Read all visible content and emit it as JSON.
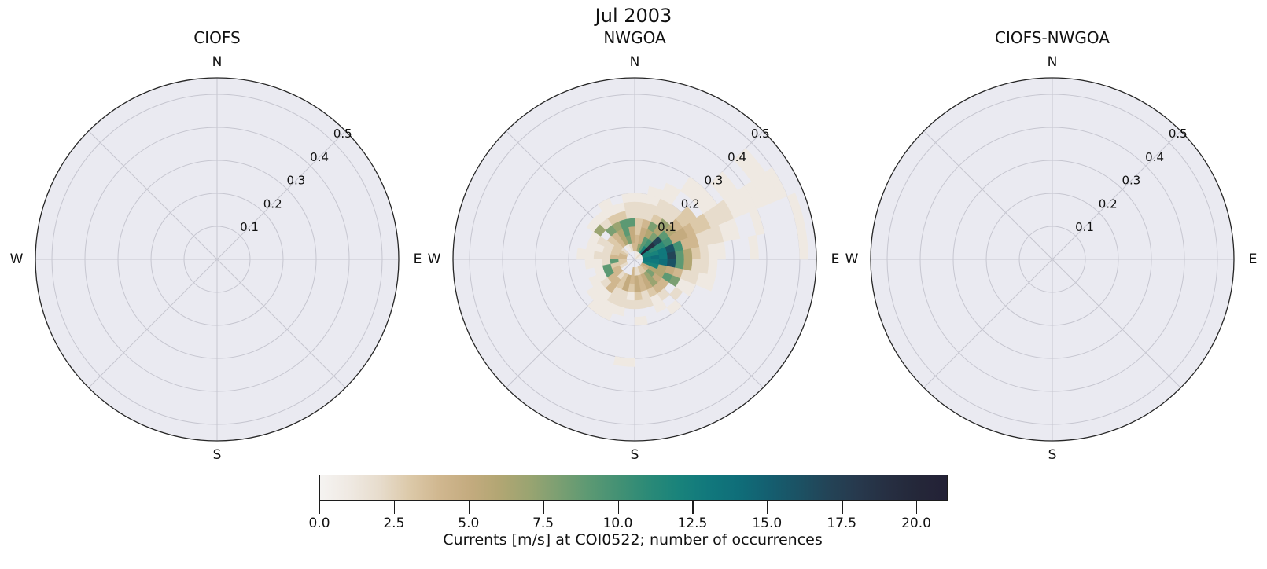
{
  "main_title": "Jul 2003",
  "colors": {
    "figure_bg": "#ffffff",
    "axes_bg": "#eaeaf1",
    "grid": "#c6c6d0",
    "spine": "#262626",
    "text": "#111111"
  },
  "chart_data": {
    "type": "heatmap",
    "subtype": "polar-pcolormesh-rose, 3 panels sharing one colorbar",
    "title": "Jul 2003",
    "panels": [
      {
        "title": "CIOFS",
        "has_data": false
      },
      {
        "title": "NWGOA",
        "has_data": true
      },
      {
        "title": "CIOFS-NWGOA",
        "has_data": false
      }
    ],
    "compass_labels": {
      "top": "N",
      "right": "E",
      "bottom": "S",
      "left": "W"
    },
    "r_ticks": [
      0.1,
      0.2,
      0.3,
      0.4,
      0.5
    ],
    "r_tick_labels": [
      "0.1",
      "0.2",
      "0.3",
      "0.4",
      "0.5"
    ],
    "r_tick_label_angle_deg": 45,
    "r_max": 0.55,
    "grid": true,
    "angle_bin_deg": 11.25,
    "r_bin_width": 0.025,
    "cells_format": "[sector_index (0 = 0-11.25 deg CCW from East), radial_bin_index (0 = 0-0.025 m/s), count]",
    "cells": [
      [
        0,
        0,
        1
      ],
      [
        0,
        1,
        13
      ],
      [
        0,
        2,
        14
      ],
      [
        0,
        3,
        13
      ],
      [
        0,
        4,
        17
      ],
      [
        0,
        5,
        9
      ],
      [
        0,
        6,
        6
      ],
      [
        0,
        7,
        3
      ],
      [
        0,
        8,
        2
      ],
      [
        0,
        9,
        1
      ],
      [
        0,
        10,
        1
      ],
      [
        0,
        14,
        1
      ],
      [
        0,
        20,
        1
      ],
      [
        1,
        0,
        1
      ],
      [
        1,
        1,
        12
      ],
      [
        1,
        2,
        12
      ],
      [
        1,
        3,
        13
      ],
      [
        1,
        4,
        16
      ],
      [
        1,
        5,
        10
      ],
      [
        1,
        6,
        4
      ],
      [
        1,
        7,
        4
      ],
      [
        1,
        8,
        2
      ],
      [
        1,
        9,
        2
      ],
      [
        1,
        10,
        2
      ],
      [
        1,
        11,
        1
      ],
      [
        1,
        12,
        1
      ],
      [
        1,
        15,
        1
      ],
      [
        1,
        20,
        1
      ],
      [
        2,
        0,
        1
      ],
      [
        2,
        1,
        12
      ],
      [
        2,
        2,
        11
      ],
      [
        2,
        3,
        11
      ],
      [
        2,
        4,
        10
      ],
      [
        2,
        5,
        5
      ],
      [
        2,
        6,
        5
      ],
      [
        2,
        7,
        4
      ],
      [
        2,
        8,
        3
      ],
      [
        2,
        9,
        3
      ],
      [
        2,
        10,
        2
      ],
      [
        2,
        11,
        2
      ],
      [
        2,
        12,
        2
      ],
      [
        2,
        13,
        1
      ],
      [
        2,
        14,
        1
      ],
      [
        2,
        15,
        1
      ],
      [
        2,
        16,
        1
      ],
      [
        2,
        17,
        1
      ],
      [
        2,
        18,
        1
      ],
      [
        2,
        19,
        1
      ],
      [
        3,
        0,
        2
      ],
      [
        3,
        1,
        21
      ],
      [
        3,
        2,
        19
      ],
      [
        3,
        3,
        17
      ],
      [
        3,
        4,
        9
      ],
      [
        3,
        5,
        6
      ],
      [
        3,
        6,
        4
      ],
      [
        3,
        7,
        3
      ],
      [
        3,
        8,
        3
      ],
      [
        3,
        10,
        1
      ],
      [
        3,
        11,
        1
      ],
      [
        3,
        13,
        1
      ],
      [
        3,
        14,
        1
      ],
      [
        3,
        17,
        1
      ],
      [
        3,
        18,
        1
      ],
      [
        4,
        0,
        2
      ],
      [
        4,
        1,
        12
      ],
      [
        4,
        2,
        10
      ],
      [
        4,
        3,
        8
      ],
      [
        4,
        4,
        6
      ],
      [
        4,
        5,
        7
      ],
      [
        4,
        6,
        2
      ],
      [
        4,
        7,
        2
      ],
      [
        4,
        10,
        1
      ],
      [
        4,
        11,
        1
      ],
      [
        5,
        0,
        1
      ],
      [
        5,
        1,
        9
      ],
      [
        5,
        2,
        9
      ],
      [
        5,
        3,
        6
      ],
      [
        5,
        4,
        8
      ],
      [
        5,
        5,
        3
      ],
      [
        5,
        6,
        2
      ],
      [
        5,
        7,
        2
      ],
      [
        5,
        8,
        1
      ],
      [
        5,
        9,
        1
      ],
      [
        6,
        0,
        1
      ],
      [
        6,
        1,
        7
      ],
      [
        6,
        2,
        5
      ],
      [
        6,
        3,
        5
      ],
      [
        6,
        4,
        4
      ],
      [
        6,
        5,
        2
      ],
      [
        6,
        6,
        2
      ],
      [
        6,
        7,
        1
      ],
      [
        6,
        8,
        1
      ],
      [
        7,
        0,
        1
      ],
      [
        7,
        1,
        4
      ],
      [
        7,
        2,
        4
      ],
      [
        7,
        3,
        3
      ],
      [
        7,
        4,
        3
      ],
      [
        7,
        5,
        2
      ],
      [
        7,
        6,
        2
      ],
      [
        7,
        7,
        1
      ],
      [
        8,
        1,
        4
      ],
      [
        8,
        2,
        5
      ],
      [
        8,
        3,
        5
      ],
      [
        8,
        4,
        9
      ],
      [
        8,
        5,
        2
      ],
      [
        8,
        6,
        2
      ],
      [
        8,
        7,
        1
      ],
      [
        9,
        1,
        2
      ],
      [
        9,
        2,
        8
      ],
      [
        9,
        3,
        9
      ],
      [
        9,
        4,
        9
      ],
      [
        9,
        5,
        3
      ],
      [
        9,
        6,
        1
      ],
      [
        10,
        1,
        1
      ],
      [
        10,
        2,
        6
      ],
      [
        10,
        3,
        6
      ],
      [
        10,
        4,
        7
      ],
      [
        10,
        5,
        3
      ],
      [
        10,
        6,
        1
      ],
      [
        10,
        7,
        1
      ],
      [
        11,
        2,
        4
      ],
      [
        11,
        3,
        4
      ],
      [
        11,
        4,
        8
      ],
      [
        11,
        5,
        2
      ],
      [
        11,
        6,
        1
      ],
      [
        12,
        1,
        2
      ],
      [
        12,
        2,
        3
      ],
      [
        12,
        3,
        3
      ],
      [
        12,
        5,
        7
      ],
      [
        12,
        6,
        1
      ],
      [
        13,
        1,
        3
      ],
      [
        13,
        2,
        3
      ],
      [
        13,
        3,
        2
      ],
      [
        13,
        4,
        2
      ],
      [
        13,
        5,
        1
      ],
      [
        14,
        1,
        4
      ],
      [
        14,
        2,
        3
      ],
      [
        14,
        3,
        2
      ],
      [
        14,
        4,
        1
      ],
      [
        14,
        5,
        1
      ],
      [
        15,
        1,
        4
      ],
      [
        15,
        2,
        4
      ],
      [
        15,
        3,
        2
      ],
      [
        15,
        4,
        2
      ],
      [
        15,
        5,
        1
      ],
      [
        15,
        6,
        1
      ],
      [
        16,
        1,
        3
      ],
      [
        16,
        2,
        9
      ],
      [
        16,
        3,
        2
      ],
      [
        16,
        4,
        1
      ],
      [
        16,
        5,
        1
      ],
      [
        17,
        1,
        3
      ],
      [
        17,
        2,
        3
      ],
      [
        17,
        3,
        9
      ],
      [
        17,
        4,
        1
      ],
      [
        18,
        1,
        2
      ],
      [
        18,
        2,
        4
      ],
      [
        18,
        3,
        9
      ],
      [
        18,
        4,
        1
      ],
      [
        18,
        5,
        1
      ],
      [
        19,
        2,
        4
      ],
      [
        19,
        3,
        4
      ],
      [
        19,
        4,
        2
      ],
      [
        19,
        5,
        1
      ],
      [
        19,
        6,
        1
      ],
      [
        20,
        2,
        2
      ],
      [
        20,
        3,
        4
      ],
      [
        20,
        4,
        4
      ],
      [
        20,
        5,
        1
      ],
      [
        20,
        6,
        1
      ],
      [
        20,
        7,
        1
      ],
      [
        21,
        2,
        3
      ],
      [
        21,
        3,
        3
      ],
      [
        21,
        4,
        2
      ],
      [
        21,
        5,
        2
      ],
      [
        21,
        6,
        1
      ],
      [
        21,
        7,
        1
      ],
      [
        22,
        2,
        5
      ],
      [
        22,
        3,
        5
      ],
      [
        22,
        4,
        2
      ],
      [
        22,
        5,
        2
      ],
      [
        22,
        6,
        1
      ],
      [
        23,
        1,
        4
      ],
      [
        23,
        2,
        4
      ],
      [
        23,
        3,
        3
      ],
      [
        23,
        4,
        1
      ],
      [
        23,
        5,
        2
      ],
      [
        23,
        12,
        1
      ],
      [
        24,
        1,
        2
      ],
      [
        24,
        2,
        5
      ],
      [
        24,
        3,
        5
      ],
      [
        24,
        4,
        3
      ],
      [
        24,
        5,
        2
      ],
      [
        24,
        7,
        1
      ],
      [
        25,
        1,
        2
      ],
      [
        25,
        2,
        4
      ],
      [
        25,
        3,
        4
      ],
      [
        25,
        4,
        2
      ],
      [
        25,
        5,
        2
      ],
      [
        26,
        1,
        3
      ],
      [
        26,
        2,
        5
      ],
      [
        26,
        3,
        5
      ],
      [
        26,
        4,
        3
      ],
      [
        26,
        5,
        1
      ],
      [
        26,
        6,
        1
      ],
      [
        27,
        1,
        3
      ],
      [
        27,
        2,
        7
      ],
      [
        27,
        3,
        7
      ],
      [
        27,
        4,
        4
      ],
      [
        27,
        5,
        2
      ],
      [
        27,
        7,
        1
      ],
      [
        28,
        1,
        4
      ],
      [
        28,
        2,
        8
      ],
      [
        28,
        3,
        5
      ],
      [
        28,
        4,
        4
      ],
      [
        28,
        6,
        2
      ],
      [
        29,
        1,
        5
      ],
      [
        29,
        2,
        6
      ],
      [
        29,
        3,
        6
      ],
      [
        29,
        4,
        9
      ],
      [
        29,
        5,
        8
      ],
      [
        29,
        6,
        1
      ],
      [
        29,
        7,
        1
      ],
      [
        30,
        1,
        12
      ],
      [
        30,
        2,
        12
      ],
      [
        30,
        3,
        6
      ],
      [
        30,
        4,
        5
      ],
      [
        30,
        5,
        4
      ],
      [
        30,
        6,
        2
      ],
      [
        30,
        7,
        2
      ],
      [
        30,
        8,
        1
      ],
      [
        30,
        9,
        1
      ],
      [
        31,
        1,
        13
      ],
      [
        31,
        2,
        13
      ],
      [
        31,
        3,
        14
      ],
      [
        31,
        4,
        16
      ],
      [
        31,
        5,
        9
      ],
      [
        31,
        6,
        6
      ],
      [
        31,
        7,
        2
      ],
      [
        31,
        8,
        2
      ],
      [
        31,
        9,
        1
      ]
    ]
  },
  "colormap": {
    "vmin": 0,
    "vmax": 21,
    "stops": [
      "#f5f3f1",
      "#efe9e2",
      "#e7dccc",
      "#dcc9a9",
      "#d0b78f",
      "#c4ab7f",
      "#b2a673",
      "#9aa471",
      "#7b9f72",
      "#5c9973",
      "#439174",
      "#2b8a77",
      "#19837b",
      "#11787c",
      "#0f6e79",
      "#145f70",
      "#1b5264",
      "#234457",
      "#27394d",
      "#262f42",
      "#242739",
      "#232136"
    ]
  },
  "colorbar": {
    "label": "Currents [m/s] at COI0522; number of occurrences",
    "tick_labels": [
      "0.0",
      "2.5",
      "5.0",
      "7.5",
      "10.0",
      "12.5",
      "15.0",
      "17.5",
      "20.0"
    ],
    "tick_values": [
      0,
      2.5,
      5,
      7.5,
      10,
      12.5,
      15,
      17.5,
      20
    ],
    "vmin": 0,
    "vmax": 21
  }
}
